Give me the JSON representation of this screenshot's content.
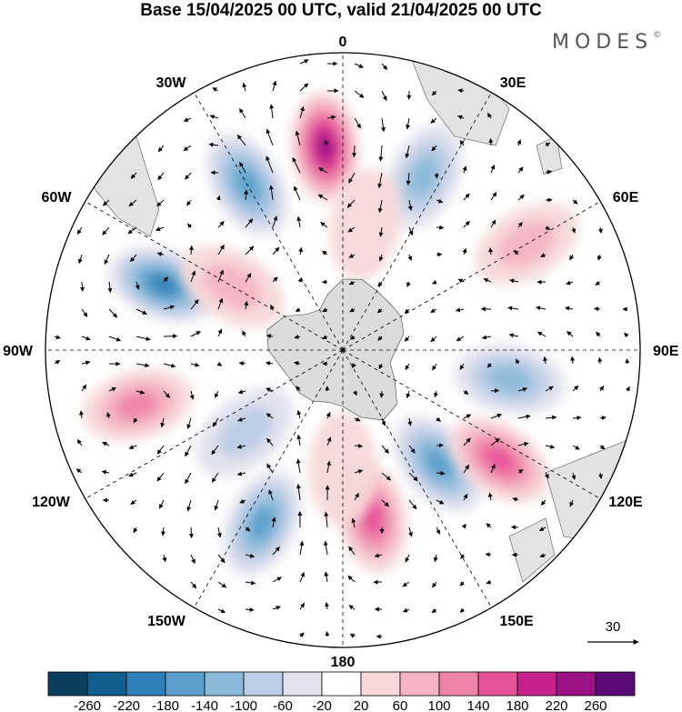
{
  "title": "Base 15/04/2025 00 UTC, valid 21/04/2025 00 UTC",
  "brand": "MODES",
  "brand_mark": "©",
  "longitude_labels": [
    "0",
    "30E",
    "60E",
    "90E",
    "120E",
    "150E",
    "180",
    "150W",
    "120W",
    "90W",
    "60W",
    "30W"
  ],
  "vector_reference": "30",
  "colorbar": {
    "labels": [
      "-260",
      "-220",
      "-180",
      "-140",
      "-100",
      "-60",
      "-20",
      "20",
      "60",
      "100",
      "140",
      "180",
      "220",
      "260"
    ],
    "colors": [
      "#0c3e5e",
      "#0f5e8e",
      "#2f80b8",
      "#5a9fcb",
      "#8bb9da",
      "#bccee6",
      "#e2e2ef",
      "#ffffff",
      "#f8d8d8",
      "#f5b4c4",
      "#ef84aa",
      "#e5529a",
      "#c6218a",
      "#9a1286",
      "#5c0c78"
    ]
  },
  "colors": {
    "land": "#dcdcdc",
    "grid": "#000000",
    "ocean": "#ffffff"
  },
  "anomalies": [
    {
      "lon": 355,
      "lat": -42,
      "value": 230
    },
    {
      "lon": 330,
      "lat": -45,
      "value": -170
    },
    {
      "lon": 290,
      "lat": -45,
      "value": -200
    },
    {
      "lon": 300,
      "lat": -60,
      "value": 90
    },
    {
      "lon": 255,
      "lat": -40,
      "value": 110
    },
    {
      "lon": 205,
      "lat": -45,
      "value": -170
    },
    {
      "lon": 170,
      "lat": -50,
      "value": 150
    },
    {
      "lon": 140,
      "lat": -55,
      "value": -150
    },
    {
      "lon": 125,
      "lat": -45,
      "value": 160
    },
    {
      "lon": 100,
      "lat": -50,
      "value": -130
    },
    {
      "lon": 60,
      "lat": -40,
      "value": 70
    },
    {
      "lon": 25,
      "lat": -45,
      "value": -110
    },
    {
      "lon": 230,
      "lat": -60,
      "value": -60
    },
    {
      "lon": 180,
      "lat": -62,
      "value": 40
    },
    {
      "lon": 10,
      "lat": -60,
      "value": 50
    }
  ]
}
